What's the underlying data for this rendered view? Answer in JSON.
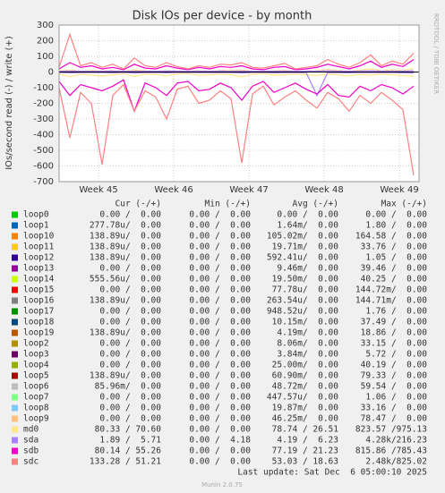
{
  "chart_data": {
    "type": "line",
    "title": "Disk IOs per device - by month",
    "y_label": "IOs/second read (-) / write (+)",
    "side_note": "RRDTOOL / TOBI OETIKER",
    "x": [
      0,
      1,
      2,
      3,
      4,
      5,
      6,
      7,
      8,
      9,
      10,
      11,
      12,
      13,
      14,
      15,
      16,
      17,
      18,
      19,
      20,
      21,
      22,
      23,
      24,
      25,
      26,
      27,
      28,
      29,
      30,
      31,
      32,
      33
    ],
    "xlim": [
      0,
      33.5
    ],
    "xticks": [
      {
        "value": 3.67,
        "label": "Week 45"
      },
      {
        "value": 10.67,
        "label": "Week 46"
      },
      {
        "value": 17.67,
        "label": "Week 47"
      },
      {
        "value": 24.67,
        "label": "Week 48"
      },
      {
        "value": 31.67,
        "label": "Week 49"
      }
    ],
    "ylim": [
      -700,
      300
    ],
    "yticks": [
      -700,
      -600,
      -500,
      -400,
      -300,
      -200,
      -100,
      0,
      100,
      200,
      300
    ],
    "grid": true,
    "columns": [
      "Cur (-/+)",
      "Min (-/+)",
      "Avg (-/+)",
      "Max (-/+)"
    ],
    "series": [
      {
        "name": "loop0",
        "color": "#00CC00",
        "stats": [
          "0.00 /  0.00",
          "0.00 /  0.00",
          "0.00 /  0.00",
          "0.00 /  0.00"
        ]
      },
      {
        "name": "loop1",
        "color": "#0066B3",
        "stats": [
          "277.78u/  0.00",
          "0.00 /  0.00",
          "1.64m/  0.00",
          "1.80 /  0.00"
        ]
      },
      {
        "name": "loop10",
        "color": "#FF8000",
        "stats": [
          "138.89u/  0.00",
          "0.00 /  0.00",
          "105.02m/  0.00",
          "164.58 /  0.00"
        ]
      },
      {
        "name": "loop11",
        "color": "#FFCC00",
        "stats": [
          "138.89u/  0.00",
          "0.00 /  0.00",
          "19.71m/  0.00",
          "33.76 /  0.00"
        ]
      },
      {
        "name": "loop12",
        "color": "#330099",
        "stats": [
          "138.89u/  0.00",
          "0.00 /  0.00",
          "592.41u/  0.00",
          "1.05 /  0.00"
        ]
      },
      {
        "name": "loop13",
        "color": "#990099",
        "stats": [
          "0.00 /  0.00",
          "0.00 /  0.00",
          "9.46m/  0.00",
          "39.46 /  0.00"
        ]
      },
      {
        "name": "loop14",
        "color": "#CCFF00",
        "stats": [
          "555.56u/  0.00",
          "0.00 /  0.00",
          "19.50m/  0.00",
          "40.25 /  0.00"
        ]
      },
      {
        "name": "loop15",
        "color": "#FF0000",
        "stats": [
          "0.00 /  0.00",
          "0.00 /  0.00",
          "77.78u/  0.00",
          "144.72m/  0.00"
        ]
      },
      {
        "name": "loop16",
        "color": "#808080",
        "stats": [
          "138.89u/  0.00",
          "0.00 /  0.00",
          "263.54u/  0.00",
          "144.71m/  0.00"
        ]
      },
      {
        "name": "loop17",
        "color": "#008F00",
        "stats": [
          "0.00 /  0.00",
          "0.00 /  0.00",
          "948.52u/  0.00",
          "1.76 /  0.00"
        ]
      },
      {
        "name": "loop18",
        "color": "#00487D",
        "stats": [
          "0.00 /  0.00",
          "0.00 /  0.00",
          "10.15m/  0.00",
          "37.49 /  0.00"
        ]
      },
      {
        "name": "loop19",
        "color": "#B35A00",
        "stats": [
          "138.89u/  0.00",
          "0.00 /  0.00",
          "4.19m/  0.00",
          "18.86 /  0.00"
        ]
      },
      {
        "name": "loop2",
        "color": "#B38F00",
        "stats": [
          "0.00 /  0.00",
          "0.00 /  0.00",
          "8.06m/  0.00",
          "33.15 /  0.00"
        ]
      },
      {
        "name": "loop3",
        "color": "#6B006B",
        "stats": [
          "0.00 /  0.00",
          "0.00 /  0.00",
          "3.84m/  0.00",
          "5.72 /  0.00"
        ]
      },
      {
        "name": "loop4",
        "color": "#8FB300",
        "stats": [
          "0.00 /  0.00",
          "0.00 /  0.00",
          "25.00m/  0.00",
          "40.19 /  0.00"
        ]
      },
      {
        "name": "loop5",
        "color": "#B30000",
        "stats": [
          "138.89u/  0.00",
          "0.00 /  0.00",
          "60.90m/  0.00",
          "79.33 /  0.00"
        ]
      },
      {
        "name": "loop6",
        "color": "#BEBEBE",
        "stats": [
          "85.96m/  0.00",
          "0.00 /  0.00",
          "48.72m/  0.00",
          "59.54 /  0.00"
        ]
      },
      {
        "name": "loop7",
        "color": "#80FF80",
        "stats": [
          "0.00 /  0.00",
          "0.00 /  0.00",
          "447.57u/  0.00",
          "1.06 /  0.00"
        ]
      },
      {
        "name": "loop8",
        "color": "#80C9FF",
        "stats": [
          "0.00 /  0.00",
          "0.00 /  0.00",
          "19.87m/  0.00",
          "33.16 /  0.00"
        ]
      },
      {
        "name": "loop9",
        "color": "#FFC080",
        "stats": [
          "0.00 /  0.00",
          "0.00 /  0.00",
          "46.25m/  0.00",
          "78.47 /  0.00"
        ]
      },
      {
        "name": "md0",
        "color": "#FFE680",
        "stats": [
          "80.33 / 70.60",
          "0.00 /  0.00",
          "78.74 / 26.51",
          "823.57 /975.13"
        ],
        "values": [
          8,
          12,
          6,
          10,
          7,
          9,
          5,
          14,
          8,
          6,
          10,
          7,
          5,
          9,
          6,
          10,
          9,
          12,
          6,
          5,
          8,
          11,
          5,
          6,
          8,
          15,
          10,
          6,
          12,
          20,
          8,
          14,
          10,
          22
        ],
        "values_read": [
          -12,
          -30,
          -15,
          -20,
          -25,
          -18,
          -10,
          -28,
          -14,
          -16,
          -24,
          -12,
          -10,
          -20,
          -18,
          -13,
          -17,
          -30,
          -15,
          -10,
          -20,
          -17,
          -13,
          -18,
          -22,
          -14,
          -18,
          -24,
          -16,
          -20,
          -14,
          -18,
          -22,
          -28
        ]
      },
      {
        "name": "sda",
        "color": "#AA80FF",
        "stats": [
          "1.89 /  5.71",
          "0.00 /  4.18",
          "4.19 /  6.23",
          "4.28k/216.23"
        ],
        "values": [
          5,
          7,
          6,
          5,
          6,
          7,
          5,
          6,
          6,
          5,
          7,
          6,
          5,
          6,
          5,
          7,
          6,
          7,
          5,
          6,
          6,
          7,
          5,
          6,
          6,
          8,
          6,
          5,
          7,
          8,
          6,
          7,
          6,
          8
        ],
        "values_read": [
          -3,
          -5,
          -4,
          -3,
          -4,
          -5,
          -2,
          -6,
          -4,
          -3,
          -5,
          -3,
          -2,
          -4,
          -4,
          -3,
          -4,
          -6,
          -3,
          -2,
          -5,
          -4,
          -3,
          -4,
          -150,
          -3,
          -4,
          -5,
          -3,
          -4,
          -3,
          -4,
          -5,
          -6
        ]
      },
      {
        "name": "sdb",
        "color": "#EE00CC",
        "stats": [
          "80.14 / 55.26",
          "0.00 /  0.00",
          "77.19 / 21.23",
          "815.86 /785.43"
        ],
        "values": [
          20,
          60,
          30,
          40,
          20,
          30,
          15,
          50,
          25,
          20,
          40,
          25,
          15,
          30,
          20,
          35,
          30,
          40,
          20,
          15,
          30,
          35,
          15,
          20,
          30,
          50,
          35,
          20,
          40,
          70,
          30,
          50,
          35,
          80
        ],
        "values_read": [
          -60,
          -150,
          -80,
          -100,
          -120,
          -90,
          -50,
          -250,
          -70,
          -100,
          -150,
          -70,
          -60,
          -120,
          -110,
          -70,
          -100,
          -180,
          -90,
          -60,
          -130,
          -100,
          -70,
          -110,
          -140,
          -80,
          -150,
          -160,
          -90,
          -120,
          -80,
          -100,
          -140,
          -90
        ]
      },
      {
        "name": "sdc",
        "color": "#FF8080",
        "stats": [
          "133.28 / 51.21",
          "0.00 /  0.00",
          "53.03 / 18.63",
          "2.48k/825.02"
        ],
        "values": [
          30,
          240,
          40,
          60,
          30,
          50,
          20,
          90,
          40,
          30,
          60,
          35,
          20,
          40,
          30,
          50,
          45,
          60,
          30,
          25,
          40,
          55,
          20,
          30,
          40,
          80,
          50,
          30,
          60,
          110,
          40,
          70,
          50,
          120
        ],
        "values_read": [
          -100,
          -420,
          -130,
          -200,
          -590,
          -150,
          -80,
          -250,
          -120,
          -160,
          -300,
          -110,
          -90,
          -200,
          -180,
          -120,
          -170,
          -580,
          -140,
          -90,
          -210,
          -160,
          -120,
          -180,
          -230,
          -130,
          -170,
          -250,
          -150,
          -200,
          -130,
          -180,
          -240,
          -660
        ]
      }
    ],
    "last_update": "Last update: Sat Dec  6 05:00:10 2025",
    "footer": "Munin 2.0.75"
  }
}
